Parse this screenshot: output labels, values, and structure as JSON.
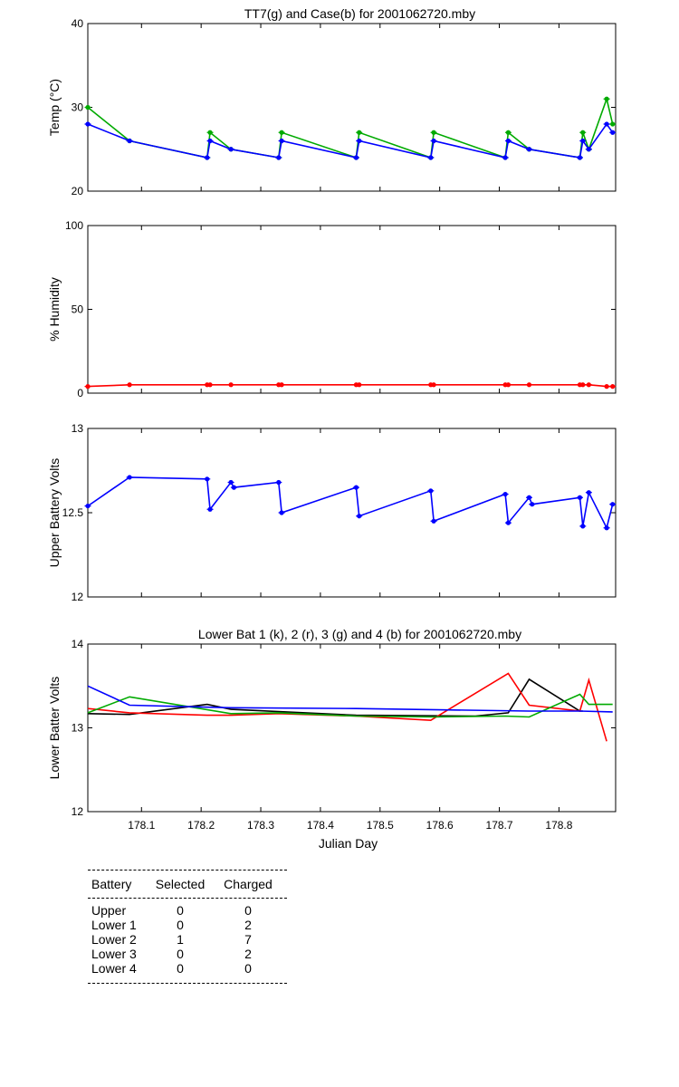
{
  "colors": {
    "k": "#000000",
    "r": "#ff0000",
    "g": "#00aa00",
    "b": "#0000ff"
  },
  "xaxis": {
    "label": "Julian Day",
    "ticks": [
      178.1,
      178.2,
      178.3,
      178.4,
      178.5,
      178.6,
      178.7,
      178.8
    ],
    "range": [
      178.01,
      178.895
    ]
  },
  "chart_data": [
    {
      "type": "line",
      "title": "TT7(g) and Case(b) for 2001062720.mby",
      "ylabel": "Temp  (°C)",
      "ylim": [
        20,
        40
      ],
      "yticks": [
        20,
        30,
        40
      ],
      "series": [
        {
          "color": "g",
          "marker": true,
          "x": [
            178.01,
            178.08,
            178.21,
            178.215,
            178.25,
            178.33,
            178.335,
            178.46,
            178.465,
            178.585,
            178.59,
            178.71,
            178.715,
            178.75,
            178.835,
            178.84,
            178.85,
            178.88,
            178.89
          ],
          "y": [
            30,
            26,
            24,
            27,
            25,
            24,
            27,
            24,
            27,
            24,
            27,
            24,
            27,
            25,
            24,
            27,
            25,
            31,
            28
          ]
        },
        {
          "color": "b",
          "marker": true,
          "x": [
            178.01,
            178.08,
            178.21,
            178.215,
            178.25,
            178.33,
            178.335,
            178.46,
            178.465,
            178.585,
            178.59,
            178.71,
            178.715,
            178.75,
            178.835,
            178.84,
            178.85,
            178.88,
            178.89
          ],
          "y": [
            28,
            26,
            24,
            26,
            25,
            24,
            26,
            24,
            26,
            24,
            26,
            24,
            26,
            25,
            24,
            26,
            25,
            28,
            27
          ]
        }
      ]
    },
    {
      "type": "line",
      "title": "",
      "ylabel": "% Humidity",
      "ylim": [
        0,
        100
      ],
      "yticks": [
        0,
        50,
        100
      ],
      "series": [
        {
          "color": "r",
          "marker": true,
          "x": [
            178.01,
            178.08,
            178.21,
            178.215,
            178.25,
            178.33,
            178.335,
            178.46,
            178.465,
            178.585,
            178.59,
            178.71,
            178.715,
            178.75,
            178.835,
            178.84,
            178.85,
            178.88,
            178.89
          ],
          "y": [
            4,
            5,
            5,
            5,
            5,
            5,
            5,
            5,
            5,
            5,
            5,
            5,
            5,
            5,
            5,
            5,
            5,
            4,
            4
          ]
        }
      ]
    },
    {
      "type": "line",
      "title": "",
      "ylabel": "Upper Battery Volts",
      "ylim": [
        12,
        13
      ],
      "yticks": [
        12,
        12.5,
        13
      ],
      "series": [
        {
          "color": "b",
          "marker": true,
          "x": [
            178.01,
            178.08,
            178.21,
            178.215,
            178.25,
            178.255,
            178.33,
            178.335,
            178.46,
            178.465,
            178.585,
            178.59,
            178.71,
            178.715,
            178.75,
            178.755,
            178.835,
            178.84,
            178.85,
            178.88,
            178.89
          ],
          "y": [
            12.54,
            12.71,
            12.7,
            12.52,
            12.68,
            12.65,
            12.68,
            12.5,
            12.65,
            12.48,
            12.63,
            12.45,
            12.61,
            12.44,
            12.59,
            12.55,
            12.59,
            12.42,
            12.62,
            12.41,
            12.55
          ]
        }
      ]
    },
    {
      "type": "line",
      "title": "Lower Bat 1 (k), 2 (r), 3 (g) and 4 (b) for 2001062720.mby",
      "ylabel": "Lower Batter Volts",
      "ylim": [
        12,
        14
      ],
      "yticks": [
        12,
        13,
        14
      ],
      "series": [
        {
          "color": "k",
          "marker": false,
          "x": [
            178.01,
            178.08,
            178.21,
            178.25,
            178.46,
            178.66,
            178.715,
            178.75,
            178.835,
            178.84
          ],
          "y": [
            13.17,
            13.16,
            13.28,
            13.22,
            13.15,
            13.14,
            13.18,
            13.58,
            13.2,
            13.2
          ]
        },
        {
          "color": "r",
          "marker": false,
          "x": [
            178.01,
            178.08,
            178.21,
            178.25,
            178.33,
            178.46,
            178.585,
            178.715,
            178.75,
            178.835,
            178.85,
            178.88
          ],
          "y": [
            13.23,
            13.18,
            13.15,
            13.15,
            13.17,
            13.14,
            13.09,
            13.65,
            13.27,
            13.2,
            13.57,
            12.84
          ]
        },
        {
          "color": "g",
          "marker": false,
          "x": [
            178.01,
            178.08,
            178.25,
            178.33,
            178.46,
            178.59,
            178.71,
            178.75,
            178.835,
            178.85,
            178.89
          ],
          "y": [
            13.18,
            13.37,
            13.17,
            13.18,
            13.14,
            13.13,
            13.14,
            13.13,
            13.4,
            13.28,
            13.28
          ]
        },
        {
          "color": "b",
          "marker": false,
          "x": [
            178.01,
            178.08,
            178.25,
            178.46,
            178.75,
            178.835,
            178.89
          ],
          "y": [
            13.5,
            13.27,
            13.24,
            13.23,
            13.2,
            13.2,
            13.19
          ]
        }
      ]
    }
  ],
  "summary": {
    "headers": [
      "Battery",
      "Selected",
      "Charged"
    ],
    "rows": [
      [
        "Upper",
        "0",
        "0"
      ],
      [
        "Lower 1",
        "0",
        "2"
      ],
      [
        "Lower 2",
        "1",
        "7"
      ],
      [
        "Lower 3",
        "0",
        "2"
      ],
      [
        "Lower 4",
        "0",
        "0"
      ]
    ]
  }
}
